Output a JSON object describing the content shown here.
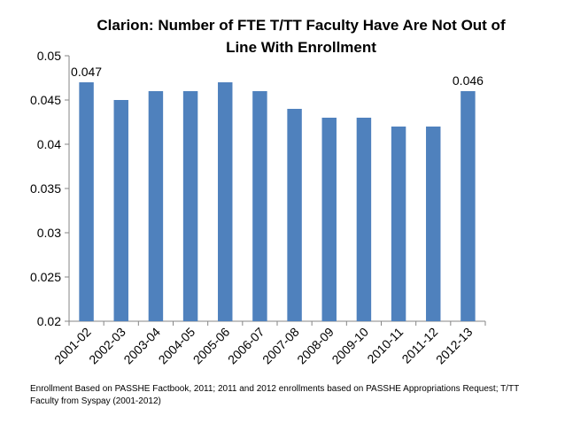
{
  "chart_data": {
    "type": "bar",
    "title": "Clarion: Number of FTE T/TT Faculty Have Are Not Out of Line With Enrollment",
    "xlabel": "",
    "ylabel": "",
    "categories": [
      "2001-02",
      "2002-03",
      "2003-04",
      "2004-05",
      "2005-06",
      "2006-07",
      "2007-08",
      "2008-09",
      "2009-10",
      "2010-11",
      "2011-12",
      "2012-13"
    ],
    "values": [
      0.047,
      0.045,
      0.046,
      0.046,
      0.047,
      0.046,
      0.044,
      0.043,
      0.043,
      0.042,
      0.042,
      0.046
    ],
    "data_labels": [
      {
        "index": 0,
        "text": "0.047"
      },
      {
        "index": 11,
        "text": "0.046"
      }
    ],
    "ylim": [
      0.02,
      0.05
    ],
    "yticks": [
      "0.02",
      "0.025",
      "0.03",
      "0.035",
      "0.04",
      "0.045",
      "0.05"
    ],
    "grid": false,
    "legend": "none",
    "bar_color": "#4f81bd"
  },
  "footnote": "Enrollment Based on PASSHE Factbook, 2011; 2011 and 2012 enrollments based on PASSHE Appropriations Request; T/TT Faculty from Syspay (2001-2012)"
}
